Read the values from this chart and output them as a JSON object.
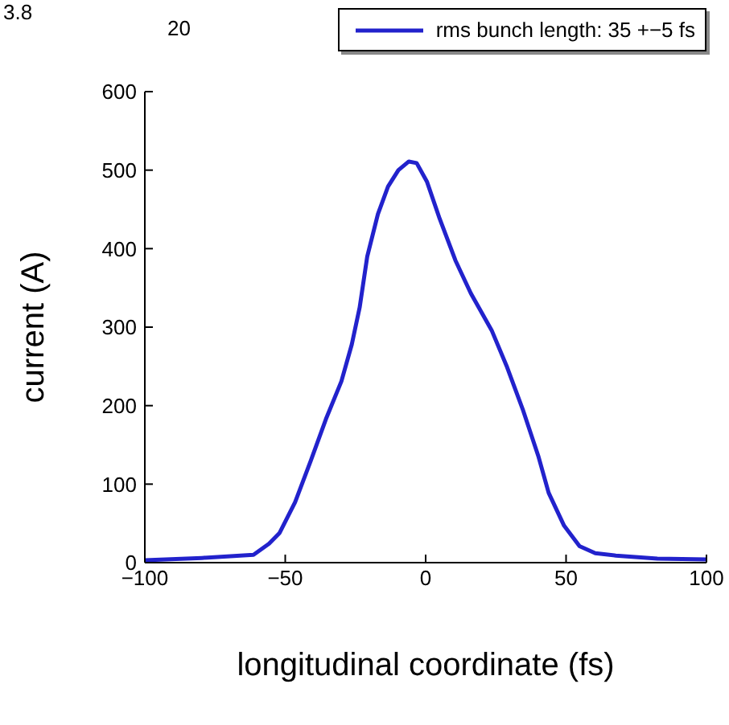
{
  "chart_data": {
    "type": "line",
    "xlabel": "longitudinal coordinate (fs)",
    "ylabel": "current (A)",
    "annotations": [
      "3.8",
      "20"
    ],
    "xlim": [
      -100,
      100
    ],
    "xticks": [
      -100,
      -50,
      0,
      50,
      100
    ],
    "ylim": [
      0,
      600
    ],
    "yticks": [
      0,
      100,
      200,
      300,
      400,
      500,
      600
    ],
    "grid": false,
    "legend": "top right",
    "marker": "none",
    "line_style": "solid",
    "series": [
      {
        "name": "rms bunch length: 35 +−5 fs",
        "color": "#2222cc",
        "x": [
          -100,
          -79.7,
          -61.3,
          -55.8,
          -52,
          -46.5,
          -40.9,
          -35.5,
          -30,
          -26.3,
          -23.5,
          -20.8,
          -17,
          -13.4,
          -9.7,
          -6,
          -3.2,
          0.5,
          5,
          10.6,
          16.1,
          23.5,
          29,
          34.6,
          40.1,
          43.8,
          49.3,
          54.8,
          60.4,
          67.7,
          82.5,
          100
        ],
        "values": [
          3,
          6,
          10,
          24,
          38,
          77,
          130,
          183,
          231,
          278,
          325,
          390,
          444,
          479,
          500,
          511,
          509,
          485,
          438,
          385,
          343,
          296,
          249,
          195,
          136,
          89,
          47,
          21,
          12,
          9,
          5,
          4
        ]
      }
    ]
  }
}
